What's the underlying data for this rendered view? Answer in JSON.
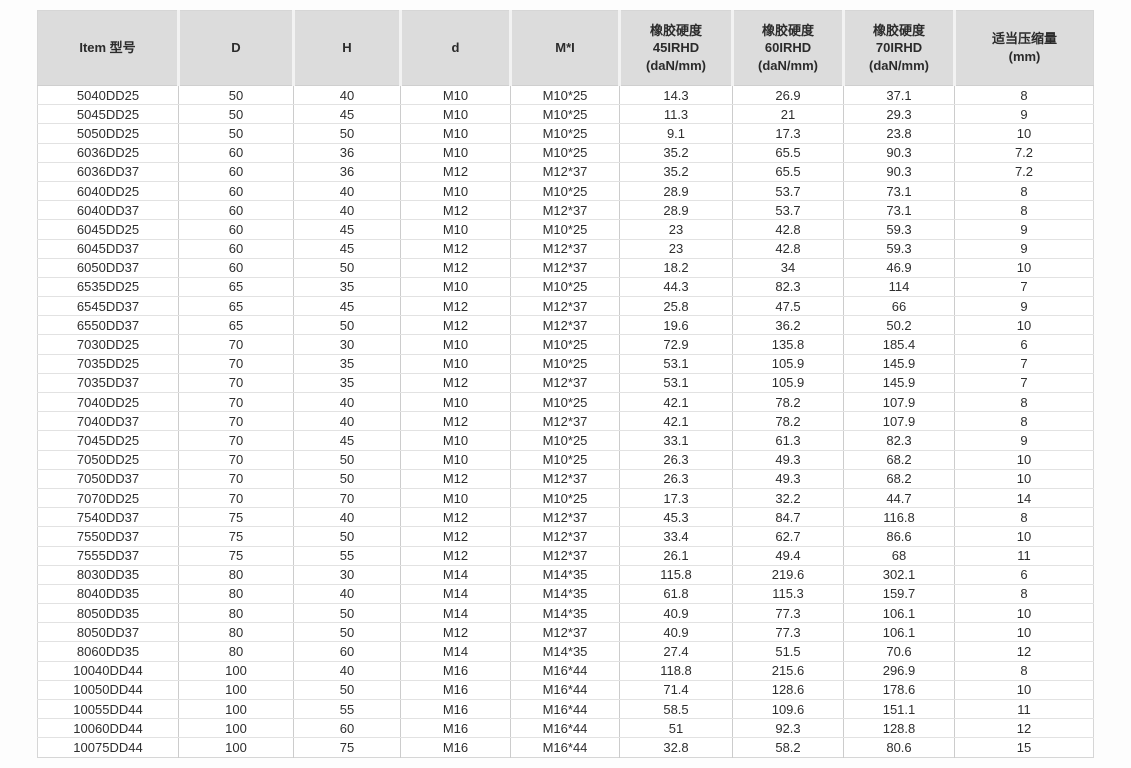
{
  "table": {
    "headers": [
      "Item 型号",
      "D",
      "H",
      "d",
      "M*I",
      "橡胶硬度\n45IRHD\n(daN/mm)",
      "橡胶硬度\n60IRHD\n(daN/mm)",
      "橡胶硬度\n70IRHD\n(daN/mm)",
      "适当压缩量\n(mm)"
    ],
    "rows": [
      [
        "5040DD25",
        "50",
        "40",
        "M10",
        "M10*25",
        "14.3",
        "26.9",
        "37.1",
        "8"
      ],
      [
        "5045DD25",
        "50",
        "45",
        "M10",
        "M10*25",
        "11.3",
        "21",
        "29.3",
        "9"
      ],
      [
        "5050DD25",
        "50",
        "50",
        "M10",
        "M10*25",
        "9.1",
        "17.3",
        "23.8",
        "10"
      ],
      [
        "6036DD25",
        "60",
        "36",
        "M10",
        "M10*25",
        "35.2",
        "65.5",
        "90.3",
        "7.2"
      ],
      [
        "6036DD37",
        "60",
        "36",
        "M12",
        "M12*37",
        "35.2",
        "65.5",
        "90.3",
        "7.2"
      ],
      [
        "6040DD25",
        "60",
        "40",
        "M10",
        "M10*25",
        "28.9",
        "53.7",
        "73.1",
        "8"
      ],
      [
        "6040DD37",
        "60",
        "40",
        "M12",
        "M12*37",
        "28.9",
        "53.7",
        "73.1",
        "8"
      ],
      [
        "6045DD25",
        "60",
        "45",
        "M10",
        "M10*25",
        "23",
        "42.8",
        "59.3",
        "9"
      ],
      [
        "6045DD37",
        "60",
        "45",
        "M12",
        "M12*37",
        "23",
        "42.8",
        "59.3",
        "9"
      ],
      [
        "6050DD37",
        "60",
        "50",
        "M12",
        "M12*37",
        "18.2",
        "34",
        "46.9",
        "10"
      ],
      [
        "6535DD25",
        "65",
        "35",
        "M10",
        "M10*25",
        "44.3",
        "82.3",
        "114",
        "7"
      ],
      [
        "6545DD37",
        "65",
        "45",
        "M12",
        "M12*37",
        "25.8",
        "47.5",
        "66",
        "9"
      ],
      [
        "6550DD37",
        "65",
        "50",
        "M12",
        "M12*37",
        "19.6",
        "36.2",
        "50.2",
        "10"
      ],
      [
        "7030DD25",
        "70",
        "30",
        "M10",
        "M10*25",
        "72.9",
        "135.8",
        "185.4",
        "6"
      ],
      [
        "7035DD25",
        "70",
        "35",
        "M10",
        "M10*25",
        "53.1",
        "105.9",
        "145.9",
        "7"
      ],
      [
        "7035DD37",
        "70",
        "35",
        "M12",
        "M12*37",
        "53.1",
        "105.9",
        "145.9",
        "7"
      ],
      [
        "7040DD25",
        "70",
        "40",
        "M10",
        "M10*25",
        "42.1",
        "78.2",
        "107.9",
        "8"
      ],
      [
        "7040DD37",
        "70",
        "40",
        "M12",
        "M12*37",
        "42.1",
        "78.2",
        "107.9",
        "8"
      ],
      [
        "7045DD25",
        "70",
        "45",
        "M10",
        "M10*25",
        "33.1",
        "61.3",
        "82.3",
        "9"
      ],
      [
        "7050DD25",
        "70",
        "50",
        "M10",
        "M10*25",
        "26.3",
        "49.3",
        "68.2",
        "10"
      ],
      [
        "7050DD37",
        "70",
        "50",
        "M12",
        "M12*37",
        "26.3",
        "49.3",
        "68.2",
        "10"
      ],
      [
        "7070DD25",
        "70",
        "70",
        "M10",
        "M10*25",
        "17.3",
        "32.2",
        "44.7",
        "14"
      ],
      [
        "7540DD37",
        "75",
        "40",
        "M12",
        "M12*37",
        "45.3",
        "84.7",
        "116.8",
        "8"
      ],
      [
        "7550DD37",
        "75",
        "50",
        "M12",
        "M12*37",
        "33.4",
        "62.7",
        "86.6",
        "10"
      ],
      [
        "7555DD37",
        "75",
        "55",
        "M12",
        "M12*37",
        "26.1",
        "49.4",
        "68",
        "11"
      ],
      [
        "8030DD35",
        "80",
        "30",
        "M14",
        "M14*35",
        "115.8",
        "219.6",
        "302.1",
        "6"
      ],
      [
        "8040DD35",
        "80",
        "40",
        "M14",
        "M14*35",
        "61.8",
        "115.3",
        "159.7",
        "8"
      ],
      [
        "8050DD35",
        "80",
        "50",
        "M14",
        "M14*35",
        "40.9",
        "77.3",
        "106.1",
        "10"
      ],
      [
        "8050DD37",
        "80",
        "50",
        "M12",
        "M12*37",
        "40.9",
        "77.3",
        "106.1",
        "10"
      ],
      [
        "8060DD35",
        "80",
        "60",
        "M14",
        "M14*35",
        "27.4",
        "51.5",
        "70.6",
        "12"
      ],
      [
        "10040DD44",
        "100",
        "40",
        "M16",
        "M16*44",
        "118.8",
        "215.6",
        "296.9",
        "8"
      ],
      [
        "10050DD44",
        "100",
        "50",
        "M16",
        "M16*44",
        "71.4",
        "128.6",
        "178.6",
        "10"
      ],
      [
        "10055DD44",
        "100",
        "55",
        "M16",
        "M16*44",
        "58.5",
        "109.6",
        "151.1",
        "11"
      ],
      [
        "10060DD44",
        "100",
        "60",
        "M16",
        "M16*44",
        "51",
        "92.3",
        "128.8",
        "12"
      ],
      [
        "10075DD44",
        "100",
        "75",
        "M16",
        "M16*44",
        "32.8",
        "58.2",
        "80.6",
        "15"
      ]
    ],
    "column_names": [
      "item-model",
      "outer-diameter-D",
      "height-H",
      "thread-d",
      "thread-by-length-MI",
      "stiffness-45IRHD",
      "stiffness-60IRHD",
      "stiffness-70IRHD",
      "compression-mm"
    ]
  }
}
